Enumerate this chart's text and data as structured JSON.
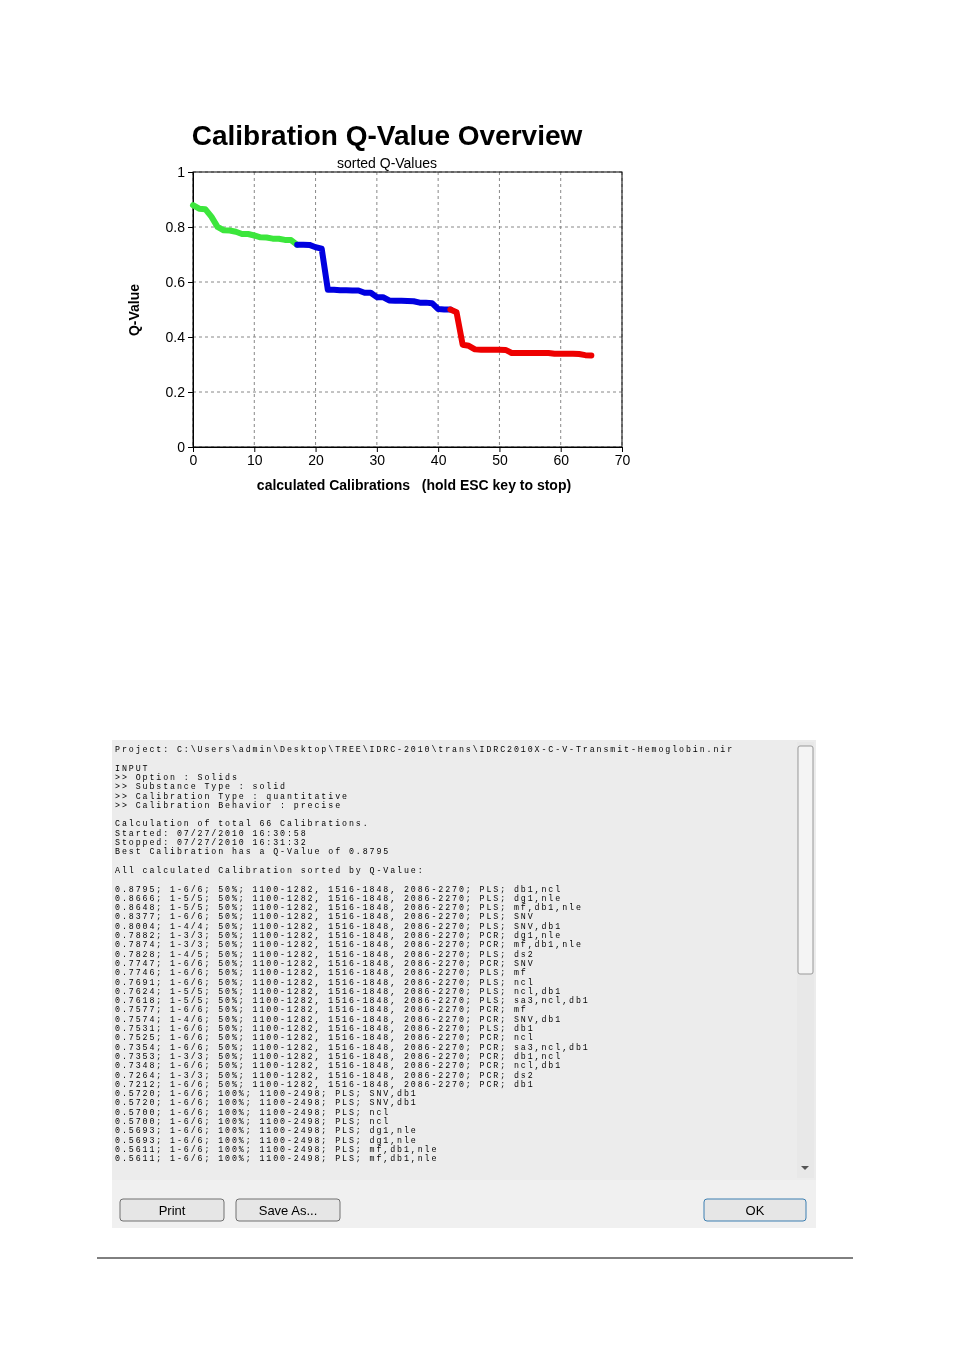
{
  "chart_data": [
    {
      "type": "line",
      "title": "Calibration Q-Value Overview",
      "subtitle": "sorted Q-Values",
      "xlabel": "calculated Calibrations   (hold ESC key to stop)",
      "ylabel": "Q-Value",
      "xlim": [
        0,
        70
      ],
      "xticks": [
        0,
        10,
        20,
        30,
        40,
        50,
        60,
        70
      ],
      "ylim": [
        0,
        1
      ],
      "yticks": [
        0,
        {
          "value": 0.2,
          "label": "0.2"
        },
        {
          "value": 0.4,
          "label": "0.4"
        },
        {
          "value": 0.6,
          "label": "0.6"
        },
        {
          "value": 0.8,
          "label": "0.8"
        },
        1
      ],
      "grid": true,
      "line_style": "solid",
      "series": [
        {
          "color": "#3ce63c",
          "x": [
            0,
            1,
            2,
            3,
            4,
            5,
            6,
            7,
            8,
            9,
            10,
            11,
            12,
            13,
            14,
            15,
            16,
            17
          ],
          "values": [
            0.8795,
            0.8666,
            0.8648,
            0.8377,
            0.8004,
            0.7882,
            0.7874,
            0.7828,
            0.7747,
            0.7746,
            0.7691,
            0.7624,
            0.7618,
            0.7577,
            0.7574,
            0.7531,
            0.7525,
            0.7354
          ]
        },
        {
          "color": "#0000e0",
          "x": [
            17,
            18,
            19,
            20,
            21,
            22,
            23,
            24,
            25,
            26,
            27,
            28,
            29,
            30,
            31,
            32,
            33,
            34,
            35,
            36,
            37,
            38,
            39,
            40,
            41,
            42
          ],
          "values": [
            0.7354,
            0.7353,
            0.7348,
            0.7264,
            0.7212,
            0.572,
            0.572,
            0.57,
            0.57,
            0.5693,
            0.5693,
            0.5611,
            0.5611,
            0.545,
            0.545,
            0.533,
            0.532,
            0.532,
            0.531,
            0.53,
            0.525,
            0.525,
            0.523,
            0.502,
            0.5,
            0.5
          ]
        },
        {
          "color": "#ee0000",
          "x": [
            42,
            43,
            44,
            45,
            46,
            47,
            48,
            49,
            50,
            51,
            52,
            53,
            54,
            55,
            56,
            57,
            58,
            59,
            60,
            61,
            62,
            63,
            64,
            65
          ],
          "values": [
            0.5,
            0.49,
            0.372,
            0.368,
            0.355,
            0.354,
            0.354,
            0.354,
            0.354,
            0.353,
            0.342,
            0.342,
            0.342,
            0.342,
            0.342,
            0.342,
            0.342,
            0.339,
            0.339,
            0.339,
            0.339,
            0.338,
            0.334,
            0.333
          ]
        }
      ]
    },
    {
      "type": "other",
      "annotations": [
        "Project: C:\\Users\\admin\\Desktop\\TREE\\IDRC-2010\\trans\\IDRC2010X-C-V-Transmit-Hemoglobin.nir",
        "INPUT",
        ">> Option : Solids",
        ">> Substance Type : solid",
        ">> Calibration Type : quantitative",
        ">> Calibration Behavior : precise",
        "Calculation of total 66 Calibrations.",
        "Started: 07/27/2010 16:30:58",
        "Stopped: 07/27/2010 16:31:32",
        "Best Calibration has a Q-Value of 0.8795",
        "All calculated Calibration sorted by Q-Value:",
        "0.8795; 1-6/6; 50%; 1100-1282, 1516-1848, 2086-2270; PLS; db1,ncl",
        "0.8666; 1-5/5; 50%; 1100-1282, 1516-1848, 2086-2270; PLS; dg1,nle",
        "0.8648; 1-5/5; 50%; 1100-1282, 1516-1848, 2086-2270; PLS; mf,db1,nle",
        "0.8377; 1-6/6; 50%; 1100-1282, 1516-1848, 2086-2270; PLS; SNV",
        "0.8004; 1-4/4; 50%; 1100-1282, 1516-1848, 2086-2270; PLS; SNV,db1",
        "0.7882; 1-3/3; 50%; 1100-1282, 1516-1848, 2086-2270; PCR; dg1,nle",
        "0.7874; 1-3/3; 50%; 1100-1282, 1516-1848, 2086-2270; PCR; mf,db1,nle",
        "0.7828; 1-4/5; 50%; 1100-1282, 1516-1848, 2086-2270; PLS; ds2",
        "0.7747; 1-6/6; 50%; 1100-1282, 1516-1848, 2086-2270; PCR; SNV",
        "0.7746; 1-6/6; 50%; 1100-1282, 1516-1848, 2086-2270; PLS; mf",
        "0.7691; 1-6/6; 50%; 1100-1282, 1516-1848, 2086-2270; PLS; ncl",
        "0.7624; 1-5/5; 50%; 1100-1282, 1516-1848, 2086-2270; PLS; ncl,db1",
        "0.7618; 1-5/5; 50%; 1100-1282, 1516-1848, 2086-2270; PLS; sa3,ncl,db1",
        "0.7577; 1-6/6; 50%; 1100-1282, 1516-1848, 2086-2270; PCR; mf",
        "0.7574; 1-4/6; 50%; 1100-1282, 1516-1848, 2086-2270; PCR; SNV,db1",
        "0.7531; 1-6/6; 50%; 1100-1282, 1516-1848, 2086-2270; PLS; db1",
        "0.7525; 1-6/6; 50%; 1100-1282, 1516-1848, 2086-2270; PCR; ncl",
        "0.7354; 1-6/6; 50%; 1100-1282, 1516-1848, 2086-2270; PCR; sa3,ncl,db1",
        "0.7353; 1-3/3; 50%; 1100-1282, 1516-1848, 2086-2270; PCR; db1,ncl",
        "0.7348; 1-6/6; 50%; 1100-1282, 1516-1848, 2086-2270; PCR; ncl,db1",
        "0.7264; 1-3/3; 50%; 1100-1282, 1516-1848, 2086-2270; PCR; ds2",
        "0.7212; 1-6/6; 50%; 1100-1282, 1516-1848, 2086-2270; PCR; db1",
        "0.5720; 1-6/6; 100%; 1100-2498; PLS; SNV,db1",
        "0.5720; 1-6/6; 100%; 1100-2498; PLS; SNV,db1",
        "0.5700; 1-6/6; 100%; 1100-2498; PLS; ncl",
        "0.5700; 1-6/6; 100%; 1100-2498; PLS; ncl",
        "0.5693; 1-6/6; 100%; 1100-2498; PLS; dg1,nle",
        "0.5693; 1-6/6; 100%; 1100-2498; PLS; dg1,nle",
        "0.5611; 1-6/6; 100%; 1100-2498; PLS; mf,db1,nle",
        "0.5611; 1-6/6; 100%; 1100-2498; PLS; mf,db1,nle",
        "Print",
        "Save As...",
        "OK"
      ]
    }
  ]
}
